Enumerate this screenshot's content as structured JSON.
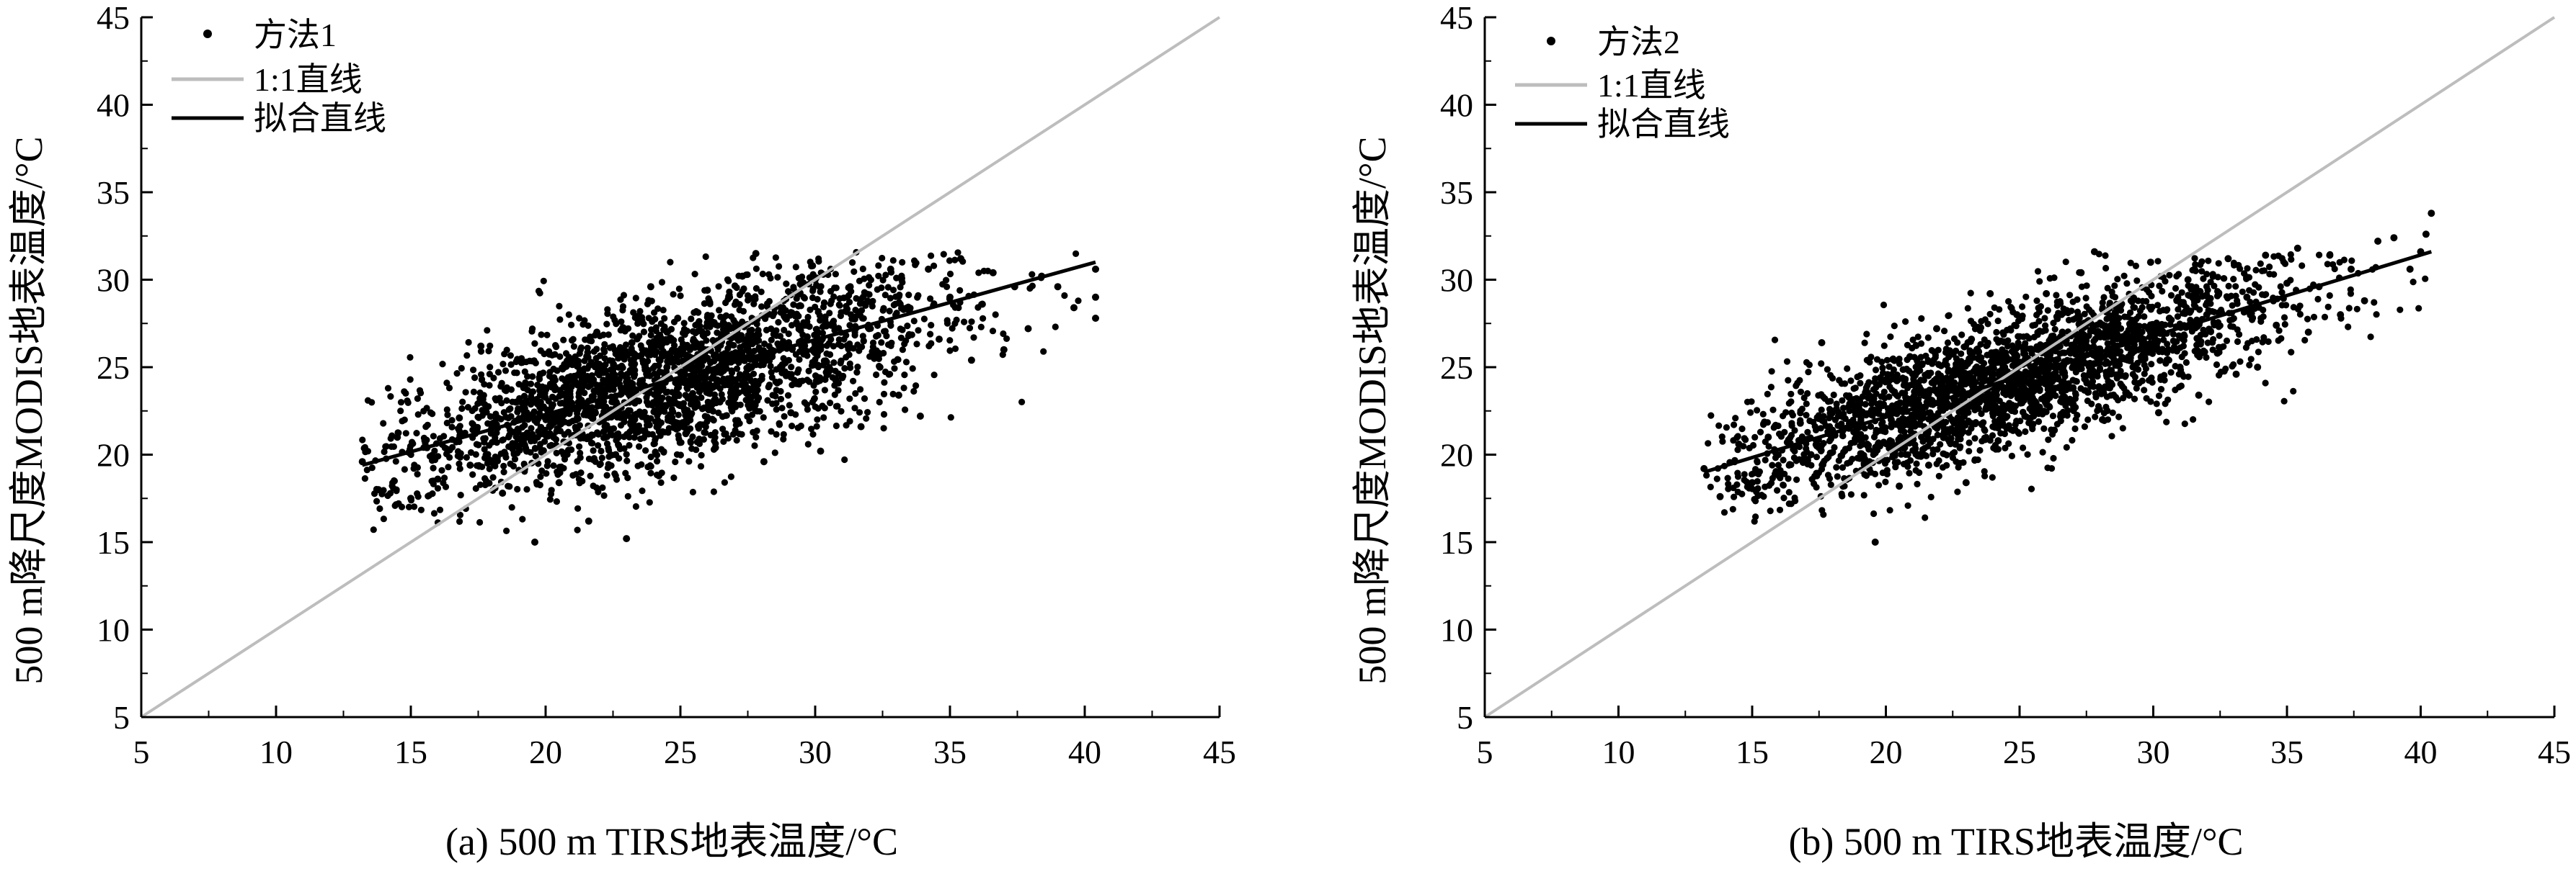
{
  "figure": {
    "panels": [
      {
        "caption": "(a) 500 m TIRS地表温度/°C",
        "ylabel": "500 m降尺度MODIS地表温度/°C",
        "legend": {
          "points": "方法1",
          "identity": "1:1直线",
          "fit": "拟合直线"
        }
      },
      {
        "caption": "(b) 500 m TIRS地表温度/°C",
        "ylabel": "500 m降尺度MODIS地表温度/°C",
        "legend": {
          "points": "方法2",
          "identity": "1:1直线",
          "fit": "拟合直线"
        }
      }
    ]
  },
  "colors": {
    "points": "#000000",
    "identity_line": "#bdbdbd",
    "fit_line": "#000000",
    "axes": "#000000"
  },
  "chart_data": [
    {
      "type": "scatter",
      "title": "",
      "caption": "(a) 500 m TIRS地表温度/°C",
      "xlabel": "500 m TIRS地表温度/°C",
      "ylabel": "500 m降尺度MODIS地表温度/°C",
      "xlim": [
        5,
        45
      ],
      "ylim": [
        5,
        45
      ],
      "xticks": [
        5,
        10,
        15,
        20,
        25,
        30,
        35,
        40,
        45
      ],
      "yticks": [
        5,
        10,
        15,
        20,
        25,
        30,
        35,
        40,
        45
      ],
      "grid": false,
      "legend_position": "top-left",
      "series": [
        {
          "name": "方法1",
          "kind": "points",
          "points": [
            [
              13.2,
              19.6
            ],
            [
              13.8,
              18.0
            ],
            [
              14.5,
              21.0
            ],
            [
              15.0,
              17.5
            ],
            [
              15.6,
              20.4
            ],
            [
              16.0,
              18.6
            ],
            [
              16.8,
              22.1
            ],
            [
              17.2,
              19.4
            ],
            [
              17.6,
              26.2
            ],
            [
              18.0,
              21.5
            ],
            [
              18.4,
              17.8
            ],
            [
              18.9,
              23.0
            ],
            [
              19.3,
              20.2
            ],
            [
              19.6,
              15.0
            ],
            [
              19.8,
              24.6
            ],
            [
              20.2,
              21.8
            ],
            [
              20.5,
              18.4
            ],
            [
              20.9,
              25.4
            ],
            [
              21.2,
              22.6
            ],
            [
              21.6,
              16.2
            ],
            [
              21.9,
              27.0
            ],
            [
              22.3,
              23.8
            ],
            [
              22.6,
              20.0
            ],
            [
              23.0,
              15.2
            ],
            [
              23.2,
              26.4
            ],
            [
              23.5,
              22.4
            ],
            [
              23.9,
              29.6
            ],
            [
              24.2,
              18.8
            ],
            [
              24.5,
              25.0
            ],
            [
              24.9,
              27.8
            ],
            [
              25.2,
              21.2
            ],
            [
              25.6,
              24.2
            ],
            [
              26.0,
              29.4
            ],
            [
              26.3,
              20.4
            ],
            [
              26.6,
              26.8
            ],
            [
              27.0,
              23.2
            ],
            [
              27.3,
              30.2
            ],
            [
              27.8,
              31.5
            ],
            [
              28.1,
              19.6
            ],
            [
              28.4,
              25.6
            ],
            [
              28.8,
              28.4
            ],
            [
              29.1,
              22.4
            ],
            [
              29.5,
              26.2
            ],
            [
              29.9,
              30.8
            ],
            [
              30.2,
              20.2
            ],
            [
              30.6,
              27.4
            ],
            [
              31.0,
              24.4
            ],
            [
              31.3,
              29.6
            ],
            [
              31.7,
              21.6
            ],
            [
              32.0,
              27.2
            ],
            [
              32.4,
              25.0
            ],
            [
              32.8,
              30.6
            ],
            [
              33.1,
              23.4
            ],
            [
              33.5,
              28.2
            ],
            [
              33.9,
              22.2
            ],
            [
              34.2,
              30.6
            ],
            [
              34.6,
              26.6
            ],
            [
              35.0,
              29.0
            ],
            [
              35.4,
              31.2
            ],
            [
              35.8,
              25.4
            ],
            [
              36.2,
              28.6
            ],
            [
              36.6,
              30.4
            ],
            [
              37.0,
              26.0
            ],
            [
              37.4,
              29.6
            ],
            [
              37.9,
              27.2
            ],
            [
              38.4,
              30.2
            ],
            [
              39.0,
              29.6
            ],
            [
              39.6,
              28.4
            ],
            [
              40.4,
              30.6
            ],
            [
              40.4,
              29.0
            ],
            [
              40.4,
              27.8
            ]
          ]
        },
        {
          "name": "1:1直线",
          "kind": "line",
          "points": [
            [
              5,
              5
            ],
            [
              45,
              45
            ]
          ]
        },
        {
          "name": "拟合直线",
          "kind": "line",
          "points": [
            [
              13.2,
              19.4
            ],
            [
              40.4,
              31.0
            ]
          ]
        }
      ]
    },
    {
      "type": "scatter",
      "title": "",
      "caption": "(b) 500 m TIRS地表温度/°C",
      "xlabel": "500 m TIRS地表温度/°C",
      "ylabel": "500 m降尺度MODIS地表温度/°C",
      "xlim": [
        5,
        45
      ],
      "ylim": [
        5,
        45
      ],
      "xticks": [
        5,
        10,
        15,
        20,
        25,
        30,
        35,
        40,
        45
      ],
      "yticks": [
        5,
        10,
        15,
        20,
        25,
        30,
        35,
        40,
        45
      ],
      "grid": false,
      "legend_position": "top-left",
      "series": [
        {
          "name": "方法2",
          "kind": "points",
          "points": [
            [
              13.2,
              19.2
            ],
            [
              13.8,
              17.6
            ],
            [
              14.5,
              20.6
            ],
            [
              15.0,
              18.4
            ],
            [
              15.6,
              21.0
            ],
            [
              16.0,
              18.8
            ],
            [
              16.8,
              21.8
            ],
            [
              17.2,
              20.0
            ],
            [
              17.6,
              26.4
            ],
            [
              18.0,
              21.4
            ],
            [
              18.4,
              18.2
            ],
            [
              18.9,
              23.2
            ],
            [
              19.3,
              20.6
            ],
            [
              19.6,
              15.0
            ],
            [
              19.8,
              24.4
            ],
            [
              20.2,
              22.0
            ],
            [
              20.5,
              18.2
            ],
            [
              20.9,
              25.6
            ],
            [
              21.2,
              22.8
            ],
            [
              21.6,
              19.4
            ],
            [
              21.9,
              27.2
            ],
            [
              22.3,
              23.6
            ],
            [
              22.6,
              20.6
            ],
            [
              23.0,
              18.4
            ],
            [
              23.2,
              26.6
            ],
            [
              23.5,
              23.0
            ],
            [
              23.9,
              29.2
            ],
            [
              24.2,
              20.8
            ],
            [
              24.5,
              25.6
            ],
            [
              24.9,
              28.0
            ],
            [
              25.2,
              22.2
            ],
            [
              25.6,
              24.6
            ],
            [
              26.0,
              29.2
            ],
            [
              26.3,
              21.4
            ],
            [
              26.6,
              27.0
            ],
            [
              27.0,
              23.8
            ],
            [
              27.3,
              30.4
            ],
            [
              27.8,
              31.6
            ],
            [
              28.1,
              22.0
            ],
            [
              28.4,
              26.0
            ],
            [
              28.8,
              28.6
            ],
            [
              29.1,
              23.4
            ],
            [
              29.5,
              26.8
            ],
            [
              29.9,
              31.0
            ],
            [
              30.2,
              22.4
            ],
            [
              30.6,
              27.8
            ],
            [
              31.0,
              25.0
            ],
            [
              31.3,
              30.0
            ],
            [
              31.7,
              23.4
            ],
            [
              32.0,
              28.0
            ],
            [
              32.4,
              25.8
            ],
            [
              32.8,
              31.2
            ],
            [
              33.1,
              24.6
            ],
            [
              33.5,
              29.0
            ],
            [
              33.9,
              25.0
            ],
            [
              34.2,
              31.4
            ],
            [
              34.6,
              27.4
            ],
            [
              35.0,
              29.8
            ],
            [
              35.4,
              31.8
            ],
            [
              35.8,
              27.0
            ],
            [
              36.2,
              29.6
            ],
            [
              36.6,
              31.4
            ],
            [
              37.0,
              28.0
            ],
            [
              37.4,
              30.6
            ],
            [
              37.9,
              28.8
            ],
            [
              38.4,
              32.2
            ],
            [
              39.0,
              32.4
            ],
            [
              39.6,
              30.6
            ],
            [
              40.4,
              33.8
            ],
            [
              40.2,
              32.6
            ],
            [
              40.0,
              31.6
            ]
          ]
        },
        {
          "name": "1:1直线",
          "kind": "line",
          "points": [
            [
              5,
              5
            ],
            [
              45,
              45
            ]
          ]
        },
        {
          "name": "拟合直线",
          "kind": "line",
          "points": [
            [
              13.2,
              19.0
            ],
            [
              40.4,
              31.6
            ]
          ]
        }
      ]
    }
  ]
}
